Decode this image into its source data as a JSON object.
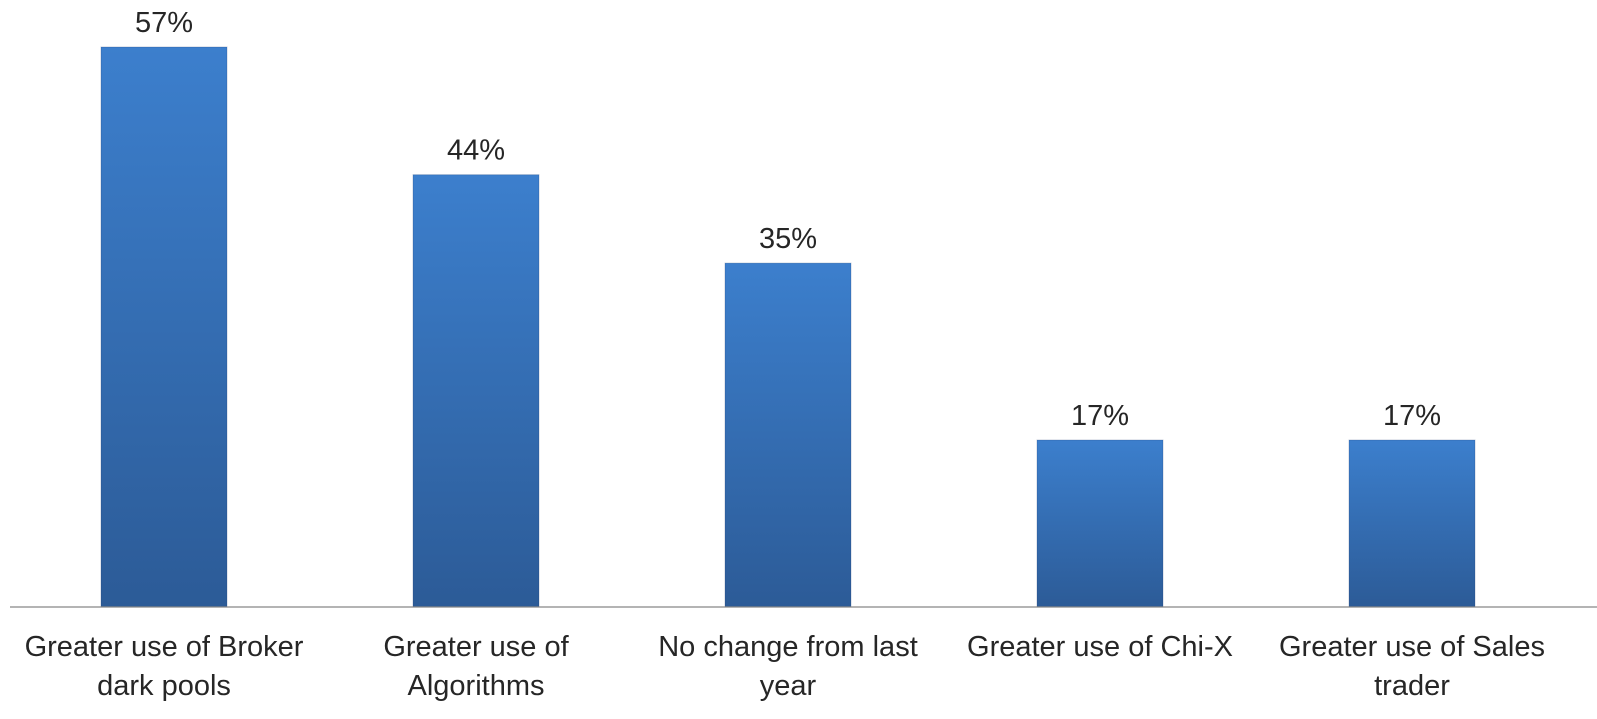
{
  "chart_data": {
    "type": "bar",
    "categories": [
      [
        "Greater use of Broker",
        "dark pools"
      ],
      [
        "Greater use of",
        "Algorithms"
      ],
      [
        "No change from last",
        "year"
      ],
      [
        "Greater use of Chi-X"
      ],
      [
        "Greater use of Sales",
        "trader"
      ]
    ],
    "values": [
      57,
      44,
      35,
      17,
      17
    ],
    "data_labels": [
      "57%",
      "44%",
      "35%",
      "17%",
      "17%"
    ],
    "unit": "%",
    "ylim": [
      0,
      60
    ],
    "grid": false,
    "legend": "none",
    "bar_color_top": "#3c7fcd",
    "bar_color_bottom": "#2c5b97",
    "axis_color": "#868686",
    "text_color": "#262626"
  }
}
